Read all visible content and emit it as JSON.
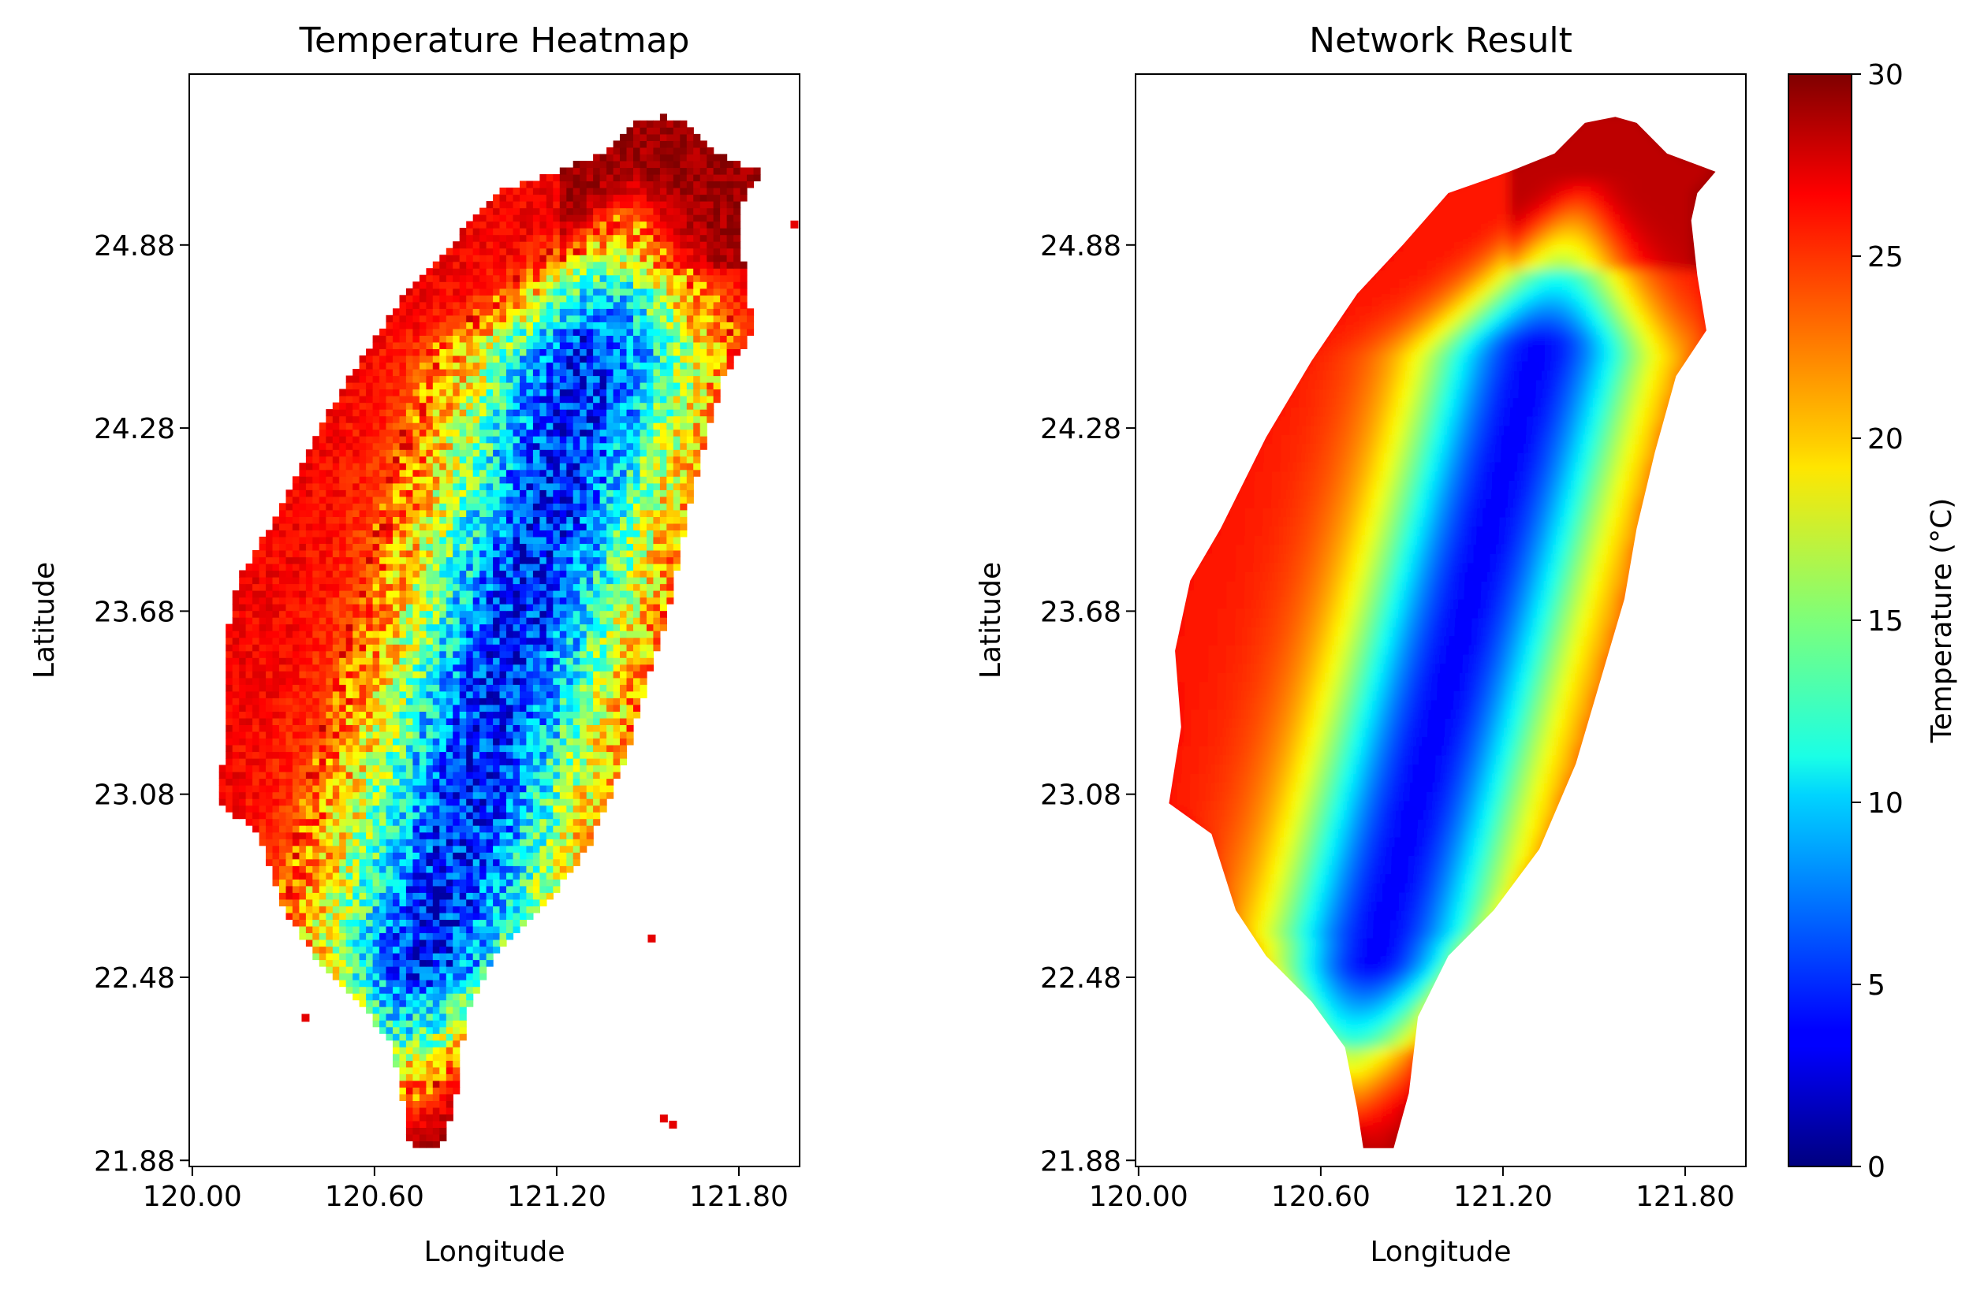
{
  "chart_data": [
    {
      "type": "heatmap",
      "title": "Temperature Heatmap",
      "xlabel": "Longitude",
      "ylabel": "Latitude",
      "xticks": [
        "120.00",
        "120.60",
        "121.20",
        "121.80"
      ],
      "yticks": [
        "21.88",
        "22.48",
        "23.08",
        "23.68",
        "24.28",
        "24.88"
      ],
      "xlim": [
        120.0,
        122.0
      ],
      "ylim": [
        21.88,
        25.44
      ],
      "grid": false,
      "colormap": "jet",
      "render": "pixelated grid",
      "description_values": {
        "mountain_min_c": 3,
        "lowland_c": 26,
        "north_max_c": 29
      }
    },
    {
      "type": "heatmap",
      "title": "Network Result",
      "xlabel": "Longitude",
      "ylabel": "Latitude",
      "xticks": [
        "120.00",
        "120.60",
        "121.20",
        "121.80"
      ],
      "yticks": [
        "21.88",
        "22.48",
        "23.08",
        "23.68",
        "24.28",
        "24.88"
      ],
      "xlim": [
        120.0,
        122.0
      ],
      "ylim": [
        21.88,
        25.44
      ],
      "grid": false,
      "colormap": "jet",
      "render": "smooth interpolation",
      "description_values": {
        "mountain_min_c": 3,
        "lowland_c": 25,
        "north_max_c": 29
      }
    }
  ],
  "colorbar": {
    "label": "Temperature (°C)",
    "ticks": [
      "0",
      "5",
      "10",
      "15",
      "20",
      "25",
      "30"
    ],
    "range": [
      0,
      30
    ],
    "colormap": "jet"
  }
}
